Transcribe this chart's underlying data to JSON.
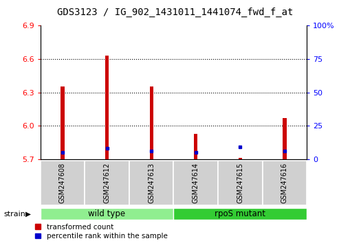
{
  "title": "GDS3123 / IG_902_1431011_1441074_fwd_f_at",
  "samples": [
    "GSM247608",
    "GSM247612",
    "GSM247613",
    "GSM247614",
    "GSM247615",
    "GSM247616"
  ],
  "red_values": [
    6.35,
    6.63,
    6.35,
    5.93,
    5.71,
    6.07
  ],
  "blue_values_pct": [
    5.0,
    8.0,
    6.0,
    5.0,
    9.0,
    6.0
  ],
  "y_min": 5.7,
  "y_max": 6.9,
  "y_ticks": [
    5.7,
    6.0,
    6.3,
    6.6,
    6.9
  ],
  "right_y_ticks": [
    0,
    25,
    50,
    75,
    100
  ],
  "wt_color": "#90EE90",
  "rpos_color": "#33CC33",
  "bar_color_red": "#CC0000",
  "bar_color_blue": "#0000CC",
  "legend_items": [
    "transformed count",
    "percentile rank within the sample"
  ],
  "bar_width": 0.08,
  "title_fontsize": 10,
  "tick_fontsize": 8,
  "label_fontsize": 8,
  "grid_ticks": [
    6.0,
    6.3,
    6.6
  ]
}
